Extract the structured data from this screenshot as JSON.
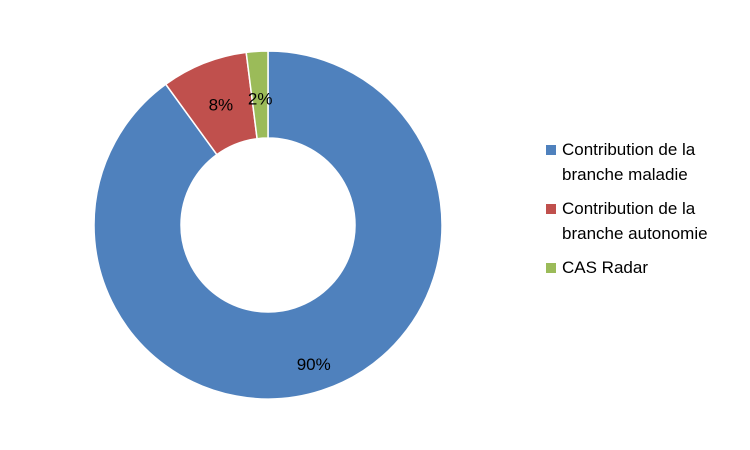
{
  "chart_data": {
    "type": "pie",
    "variant": "donut",
    "title": "",
    "legend_position": "right",
    "slices": [
      {
        "label": "Contribution de la branche maladie",
        "value": 90,
        "display": "90%",
        "color": "#4F81BD"
      },
      {
        "label": "Contribution de la branche autonomie",
        "value": 8,
        "display": "8%",
        "color": "#C0504D"
      },
      {
        "label": "CAS Radar",
        "value": 2,
        "display": "2%",
        "color": "#9BBB59"
      }
    ]
  }
}
